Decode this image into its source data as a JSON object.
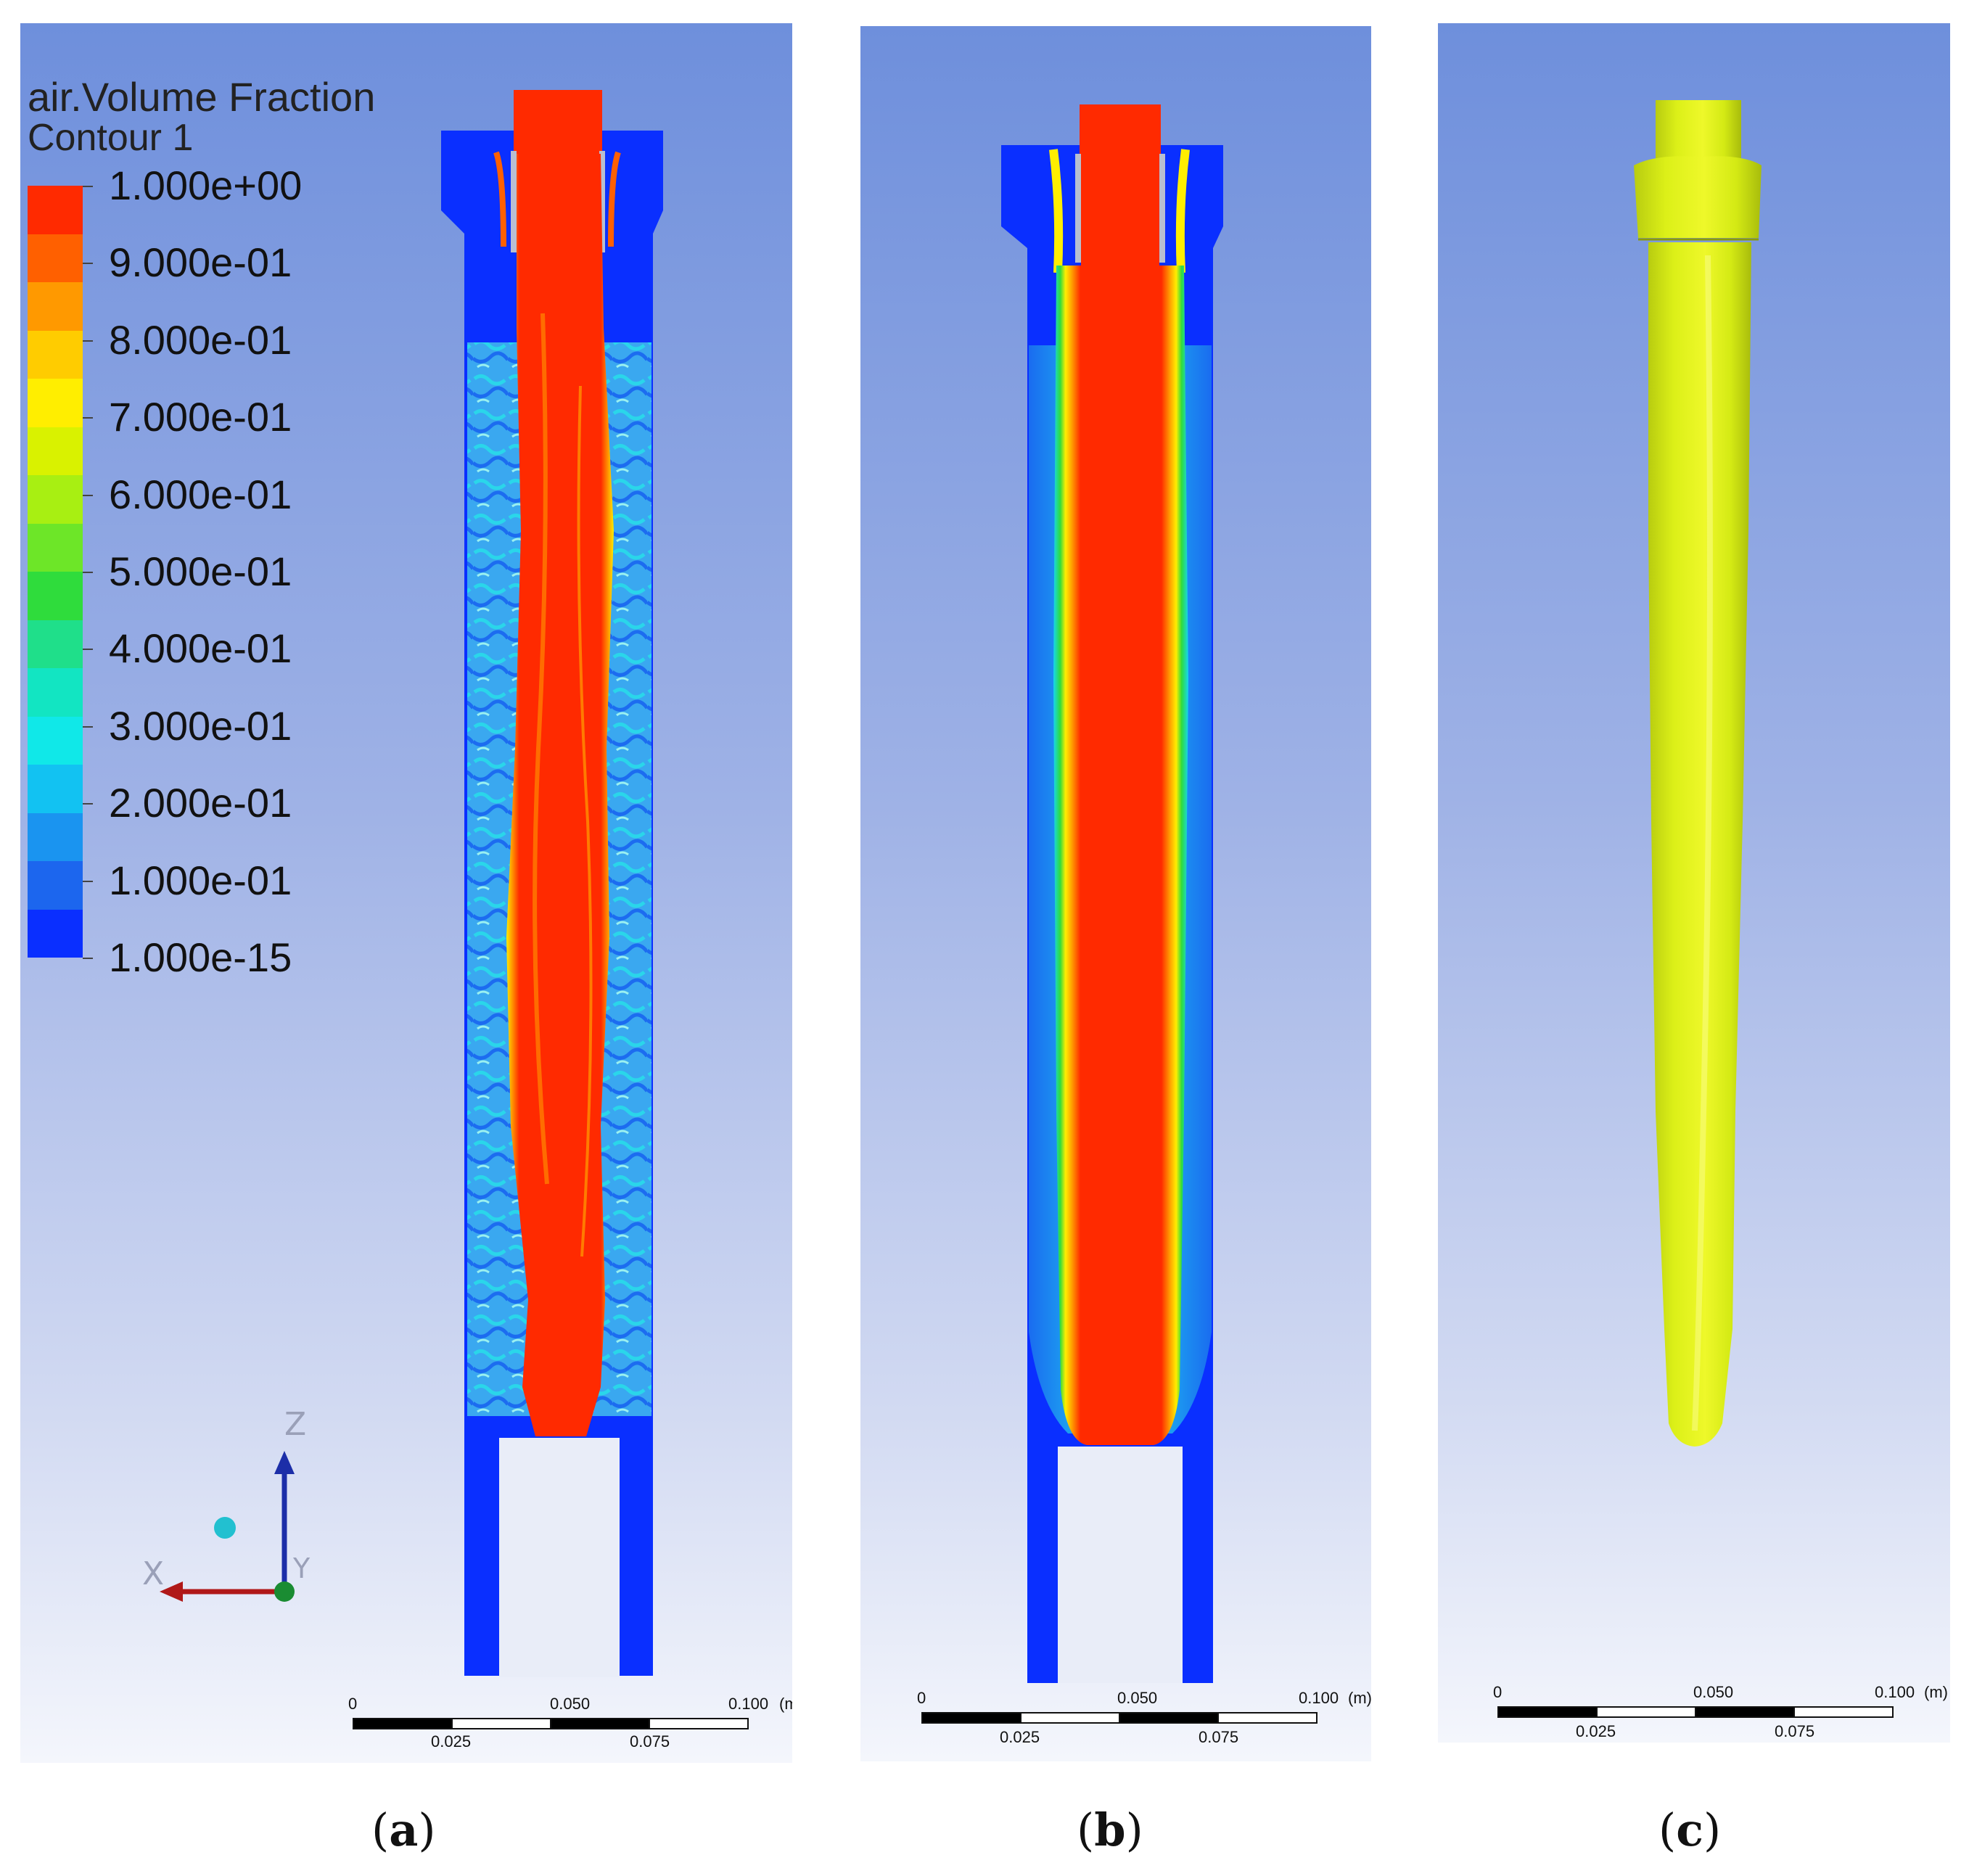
{
  "legend": {
    "title_line1": "air.Volume Fraction",
    "title_line2": "Contour 1",
    "labels": [
      "1.000e+00",
      "9.000e-01",
      "8.000e-01",
      "7.000e-01",
      "6.000e-01",
      "5.000e-01",
      "4.000e-01",
      "3.000e-01",
      "2.000e-01",
      "1.000e-01",
      "1.000e-15"
    ],
    "colors": [
      "#ff2a00",
      "#ff6000",
      "#ff9900",
      "#ffcc00",
      "#ffee00",
      "#d9f200",
      "#a8ef12",
      "#6de628",
      "#2fdc3c",
      "#1fdf8a",
      "#12e5c2",
      "#10e8e8",
      "#12c2f2",
      "#1a94f0",
      "#1c66ee",
      "#0a2fff"
    ]
  },
  "axis_triad": {
    "z": "Z",
    "x": "X",
    "y": "Y"
  },
  "scale_bars": [
    {
      "top_labels": [
        "0",
        "0.050",
        "0.100"
      ],
      "unit": "(m)",
      "bottom_labels": [
        "0.025",
        "0.075"
      ]
    },
    {
      "top_labels": [
        "0",
        "0.050",
        "0.100"
      ],
      "unit": "(m)",
      "bottom_labels": [
        "0.025",
        "0.075"
      ]
    },
    {
      "top_labels": [
        "0",
        "0.050",
        "0.100"
      ],
      "unit": "(m)",
      "bottom_labels": [
        "0.025",
        "0.075"
      ]
    }
  ],
  "captions": [
    {
      "open": "(",
      "letter": "a",
      "close": ")"
    },
    {
      "open": "(",
      "letter": "b",
      "close": ")"
    },
    {
      "open": "(",
      "letter": "c",
      "close": ")"
    }
  ],
  "colors": {
    "liquid": "#0a2fff",
    "air_core": "#ff2a00",
    "iso_surface": "#e2f51a",
    "mixed_zone": "#18c8f0"
  }
}
